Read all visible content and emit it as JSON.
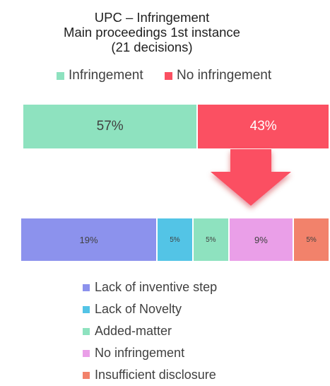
{
  "chart_data": [
    {
      "type": "bar",
      "title_lines": [
        "UPC – Infringement",
        "Main proceedings 1st instance",
        "(21 decisions)"
      ],
      "orientation": "horizontal-stacked",
      "xlim": [
        0,
        100
      ],
      "legend_position": "top",
      "series": [
        {
          "name": "Infringement",
          "values": [
            57
          ],
          "label": "57%",
          "color": "#8ee2bf",
          "label_color": "#404040"
        },
        {
          "name": "No infringement",
          "values": [
            43
          ],
          "label": "43%",
          "color": "#fb5062",
          "label_color": "#ffffff"
        }
      ]
    },
    {
      "type": "bar",
      "orientation": "horizontal-stacked",
      "legend_position": "bottom",
      "series": [
        {
          "name": "Lack of inventive step",
          "values": [
            19
          ],
          "label": "19%",
          "color": "#8c92ed"
        },
        {
          "name": "Lack of Novelty",
          "values": [
            5
          ],
          "label": "5%",
          "color": "#53c4e6"
        },
        {
          "name": "Added-matter",
          "values": [
            5
          ],
          "label": "5%",
          "color": "#8ee2bf"
        },
        {
          "name": "No infringement",
          "values": [
            9
          ],
          "label": "9%",
          "color": "#ea9fe8"
        },
        {
          "name": "Insufficient disclosure",
          "values": [
            5
          ],
          "label": "5%",
          "color": "#f2826b"
        }
      ]
    }
  ],
  "arrow": {
    "color": "#fb5062",
    "icon": "down-arrow-icon"
  }
}
